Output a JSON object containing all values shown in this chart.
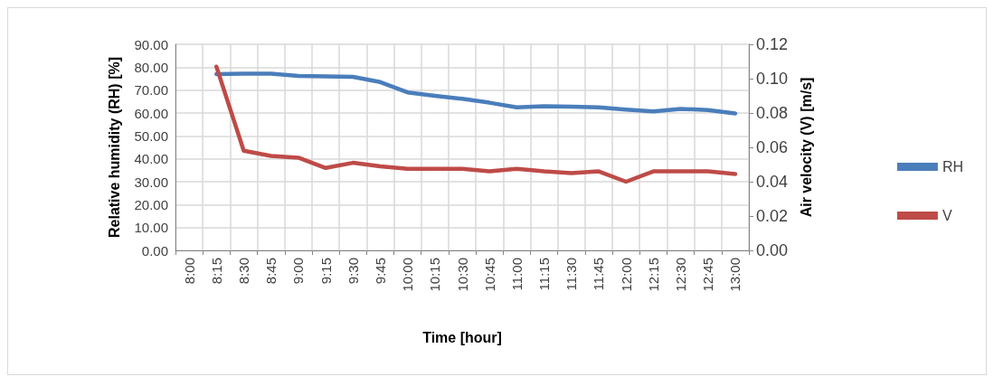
{
  "chart_data": {
    "type": "line",
    "xlabel": "Time [hour]",
    "ylabel": "Relative humidity (RH) [%]",
    "y2label": "Air velocity (V) [m/s]",
    "categories": [
      "8:00",
      "8:15",
      "8:30",
      "8:45",
      "9:00",
      "9:15",
      "9:30",
      "9:45",
      "10:00",
      "10:15",
      "10:30",
      "10:45",
      "11:00",
      "11:15",
      "11:30",
      "11:45",
      "12:00",
      "12:15",
      "12:30",
      "12:45",
      "13:00"
    ],
    "series": [
      {
        "name": "RH",
        "color": "#4a7ebb",
        "values": [
          null,
          77,
          77.2,
          77.2,
          76.2,
          76,
          75.8,
          73.5,
          69,
          67.5,
          66.2,
          64.5,
          62.5,
          63,
          62.8,
          62.5,
          61.5,
          60.7,
          61.8,
          61.3,
          59.8
        ]
      },
      {
        "name": "V",
        "color": "#be4b48",
        "axis": "y2",
        "values": [
          null,
          0.107,
          0.058,
          0.055,
          0.054,
          0.048,
          0.051,
          0.049,
          0.0475,
          0.0475,
          0.0475,
          0.046,
          0.0475,
          0.046,
          0.045,
          0.046,
          0.04,
          0.046,
          0.046,
          0.046,
          0.0445
        ]
      }
    ],
    "ylim": [
      0,
      90
    ],
    "yticks": [
      {
        "value": 0,
        "label": "0.00"
      },
      {
        "value": 10,
        "label": "10.00"
      },
      {
        "value": 20,
        "label": "20.00"
      },
      {
        "value": 30,
        "label": "30.00"
      },
      {
        "value": 40,
        "label": "40.00"
      },
      {
        "value": 50,
        "label": "50.00"
      },
      {
        "value": 60,
        "label": "60.00"
      },
      {
        "value": 70,
        "label": "70.00"
      },
      {
        "value": 80,
        "label": "80.00"
      },
      {
        "value": 90,
        "label": "90.00"
      }
    ],
    "y2lim": [
      0,
      0.12
    ],
    "y2ticks": [
      {
        "value": 0,
        "label": "0.00"
      },
      {
        "value": 0.02,
        "label": "0.02"
      },
      {
        "value": 0.04,
        "label": "0.04"
      },
      {
        "value": 0.06,
        "label": "0.06"
      },
      {
        "value": 0.08,
        "label": "0.08"
      },
      {
        "value": 0.1,
        "label": "0.10"
      },
      {
        "value": 0.12,
        "label": "0.12"
      }
    ],
    "grid": true,
    "legend": "right",
    "marker": "none",
    "line_style": "solid"
  }
}
